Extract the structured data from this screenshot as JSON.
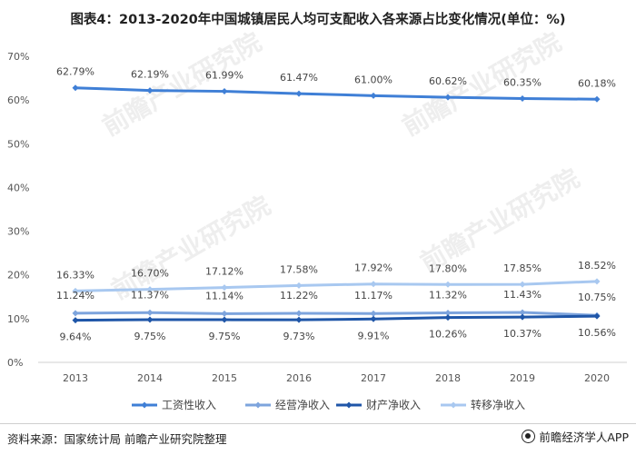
{
  "title": "图表4：2013-2020年中国城镇居民人均可支配收入各来源占比变化情况(单位：%)",
  "source": "资料来源：国家统计局 前瞻产业研究院整理",
  "brand": "前瞻经济学人APP",
  "watermark": "前瞻产业研究院",
  "chart_data": {
    "type": "line",
    "x": [
      "2013",
      "2014",
      "2015",
      "2016",
      "2017",
      "2018",
      "2019",
      "2020"
    ],
    "ylim": [
      0,
      70
    ],
    "yticks": [
      "0%",
      "10%",
      "20%",
      "30%",
      "40%",
      "50%",
      "60%",
      "70%"
    ],
    "grid": false,
    "legend": "bottom",
    "series": [
      {
        "name": "工资性收入",
        "color": "#3f7fd6",
        "values": [
          62.79,
          62.19,
          61.99,
          61.47,
          61.0,
          60.62,
          60.35,
          60.18
        ],
        "labels": [
          "62.79%",
          "62.19%",
          "61.99%",
          "61.47%",
          "61.00%",
          "60.62%",
          "60.35%",
          "60.18%"
        ]
      },
      {
        "name": "经营净收入",
        "color": "#7da4dd",
        "values": [
          11.24,
          11.37,
          11.14,
          11.22,
          11.17,
          11.32,
          11.43,
          10.75
        ],
        "labels": [
          "11.24%",
          "11.37%",
          "11.14%",
          "11.22%",
          "11.17%",
          "11.32%",
          "11.43%",
          "10.75%"
        ]
      },
      {
        "name": "财产净收入",
        "color": "#1f56a8",
        "values": [
          9.64,
          9.75,
          9.75,
          9.73,
          9.91,
          10.26,
          10.37,
          10.56
        ],
        "labels": [
          "9.64%",
          "9.75%",
          "9.75%",
          "9.73%",
          "9.91%",
          "10.26%",
          "10.37%",
          "10.56%"
        ]
      },
      {
        "name": "转移净收入",
        "color": "#a8c8f0",
        "values": [
          16.33,
          16.7,
          17.12,
          17.58,
          17.92,
          17.8,
          17.85,
          18.52
        ],
        "labels": [
          "16.33%",
          "16.70%",
          "17.12%",
          "17.58%",
          "17.92%",
          "17.80%",
          "17.85%",
          "18.52%"
        ]
      }
    ]
  }
}
